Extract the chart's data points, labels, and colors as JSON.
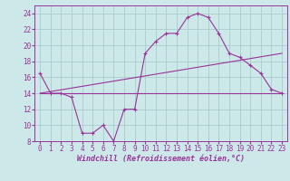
{
  "title": "",
  "xlabel": "Windchill (Refroidissement éolien,°C)",
  "ylabel": "",
  "bg_color": "#cce8e8",
  "grid_color": "#aacccc",
  "line_color": "#993399",
  "ylim": [
    8,
    25
  ],
  "yticks": [
    8,
    10,
    12,
    14,
    16,
    18,
    20,
    22,
    24
  ],
  "xlim": [
    -0.5,
    23.5
  ],
  "xticks": [
    0,
    1,
    2,
    3,
    4,
    5,
    6,
    7,
    8,
    9,
    10,
    11,
    12,
    13,
    14,
    15,
    16,
    17,
    18,
    19,
    20,
    21,
    22,
    23
  ],
  "line1_x": [
    0,
    1,
    2,
    3,
    4,
    5,
    6,
    7,
    8,
    9,
    10,
    11,
    12,
    13,
    14,
    15,
    16,
    17,
    18,
    19,
    20,
    21,
    22,
    23
  ],
  "line1_y": [
    16.5,
    14.0,
    14.0,
    13.5,
    9.0,
    9.0,
    10.0,
    8.0,
    12.0,
    12.0,
    19.0,
    20.5,
    21.5,
    21.5,
    23.5,
    24.0,
    23.5,
    21.5,
    19.0,
    18.5,
    17.5,
    16.5,
    14.5,
    14.0
  ],
  "line2_x": [
    0,
    23
  ],
  "line2_y": [
    14.0,
    19.0
  ],
  "line3_x": [
    0,
    23
  ],
  "line3_y": [
    14.0,
    14.0
  ],
  "font_size_xlabel": 6.0,
  "tick_fontsize": 5.5
}
